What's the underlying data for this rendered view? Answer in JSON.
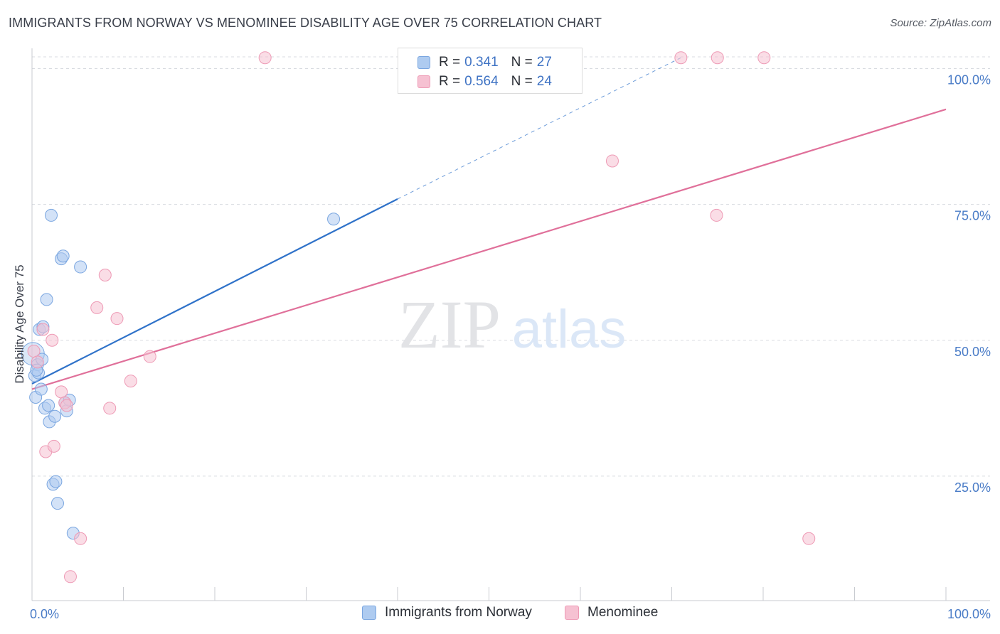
{
  "title": "IMMIGRANTS FROM NORWAY VS MENOMINEE DISABILITY AGE OVER 75 CORRELATION CHART",
  "source": "Source: ZipAtlas.com",
  "watermark": {
    "zip": "ZIP",
    "atlas": "atlas"
  },
  "colors": {
    "blue_fill": "#aecbf0",
    "blue_stroke": "#7aa6e0",
    "blue_line": "#2f72c9",
    "pink_fill": "#f6c1d2",
    "pink_stroke": "#ee9ab5",
    "pink_line": "#e0709a",
    "grid": "#d8dbe0",
    "axis_text": "#4a7cc7"
  },
  "legend": {
    "rows": [
      {
        "r_label": "R =",
        "r_value": "0.341",
        "n_label": "N =",
        "n_value": "27"
      },
      {
        "r_label": "R =",
        "r_value": "0.564",
        "n_label": "N =",
        "n_value": "24"
      }
    ]
  },
  "bottom_legend": [
    "Immigrants from Norway",
    "Menominee"
  ],
  "chart_data": {
    "type": "scatter",
    "title": "IMMIGRANTS FROM NORWAY VS MENOMINEE DISABILITY AGE OVER 75 CORRELATION CHART",
    "xlabel": "",
    "ylabel": "Disability Age Over 75",
    "xlim": [
      0,
      100
    ],
    "ylim": [
      0,
      100
    ],
    "x_tick_labels": [
      "0.0%",
      "100.0%"
    ],
    "y_tick_labels": [
      "25.0%",
      "50.0%",
      "75.0%",
      "100.0%"
    ],
    "y_ticks": [
      25,
      50,
      75,
      100
    ],
    "grid": true,
    "legend_position": "top-center",
    "series": [
      {
        "name": "Immigrants from Norway",
        "color": "#aecbf0",
        "r": 0.341,
        "n": 27,
        "points": [
          [
            0.1,
            47.5
          ],
          [
            0.3,
            43.5
          ],
          [
            0.4,
            39.5
          ],
          [
            0.6,
            45.5
          ],
          [
            0.7,
            44.0
          ],
          [
            0.8,
            52.0
          ],
          [
            1.0,
            41.0
          ],
          [
            1.1,
            46.5
          ],
          [
            1.2,
            52.5
          ],
          [
            1.4,
            37.5
          ],
          [
            1.6,
            57.5
          ],
          [
            1.8,
            38.0
          ],
          [
            1.9,
            35.0
          ],
          [
            2.1,
            73.0
          ],
          [
            2.3,
            23.5
          ],
          [
            2.5,
            36.0
          ],
          [
            2.6,
            24.0
          ],
          [
            2.8,
            20.0
          ],
          [
            3.2,
            65.0
          ],
          [
            3.4,
            65.5
          ],
          [
            3.6,
            38.5
          ],
          [
            3.8,
            37.0
          ],
          [
            4.1,
            39.0
          ],
          [
            4.5,
            14.5
          ],
          [
            5.3,
            63.5
          ],
          [
            33.0,
            72.3
          ],
          [
            0.5,
            44.5
          ]
        ],
        "trend": {
          "x": [
            0,
            40
          ],
          "y": [
            42.0,
            76.0
          ],
          "dashed_to": {
            "x": 71,
            "y": 102.0
          }
        }
      },
      {
        "name": "Menominee",
        "color": "#f6c1d2",
        "r": 0.564,
        "n": 24,
        "points": [
          [
            0.2,
            48.0
          ],
          [
            0.6,
            46.0
          ],
          [
            1.2,
            52.0
          ],
          [
            1.5,
            29.5
          ],
          [
            2.2,
            50.0
          ],
          [
            2.4,
            30.5
          ],
          [
            3.2,
            40.5
          ],
          [
            3.6,
            38.5
          ],
          [
            3.8,
            38.0
          ],
          [
            4.2,
            6.5
          ],
          [
            5.3,
            13.5
          ],
          [
            7.1,
            56.0
          ],
          [
            8.0,
            62.0
          ],
          [
            8.5,
            37.5
          ],
          [
            9.3,
            54.0
          ],
          [
            10.8,
            42.5
          ],
          [
            12.9,
            47.0
          ],
          [
            25.5,
            102.0
          ],
          [
            63.5,
            83.0
          ],
          [
            71.0,
            102.0
          ],
          [
            74.9,
            73.0
          ],
          [
            75.0,
            102.0
          ],
          [
            80.1,
            102.0
          ],
          [
            85.0,
            13.5
          ]
        ],
        "trend": {
          "x": [
            0,
            100
          ],
          "y": [
            41.0,
            92.5
          ]
        }
      }
    ]
  }
}
